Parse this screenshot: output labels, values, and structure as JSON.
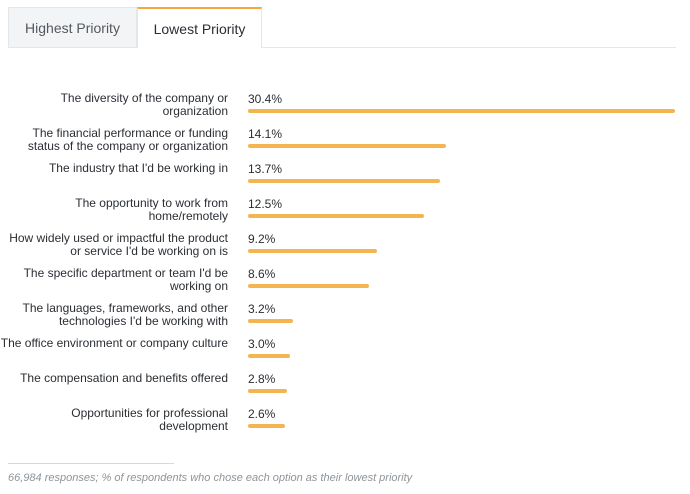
{
  "tabs": [
    {
      "label": "Highest Priority",
      "active": false
    },
    {
      "label": "Lowest Priority",
      "active": true
    }
  ],
  "colors": {
    "bar": "#f4b551",
    "active_tab_accent": "#f4a940"
  },
  "chart_data": {
    "type": "bar",
    "orientation": "horizontal",
    "categories": [
      "The diversity of the company or organization",
      "The financial performance or funding status of the company or organization",
      "The industry that I'd be working in",
      "The opportunity to work from home/remotely",
      "How widely used or impactful the product or service I'd be working on is",
      "The specific department or team I'd be working on",
      "The languages, frameworks, and other technologies I'd be working with",
      "The office environment or company culture",
      "The compensation and benefits offered",
      "Opportunities for professional development"
    ],
    "values": [
      30.4,
      14.1,
      13.7,
      12.5,
      9.2,
      8.6,
      3.2,
      3.0,
      2.8,
      2.6
    ],
    "value_labels": [
      "30.4%",
      "14.1%",
      "13.7%",
      "12.5%",
      "9.2%",
      "8.6%",
      "3.2%",
      "3.0%",
      "2.8%",
      "2.6%"
    ],
    "unit": "%",
    "xlim": [
      0,
      30.4
    ],
    "grid": false,
    "legend": false
  },
  "footnote": "66,984 responses; % of respondents who chose each option as their lowest priority"
}
